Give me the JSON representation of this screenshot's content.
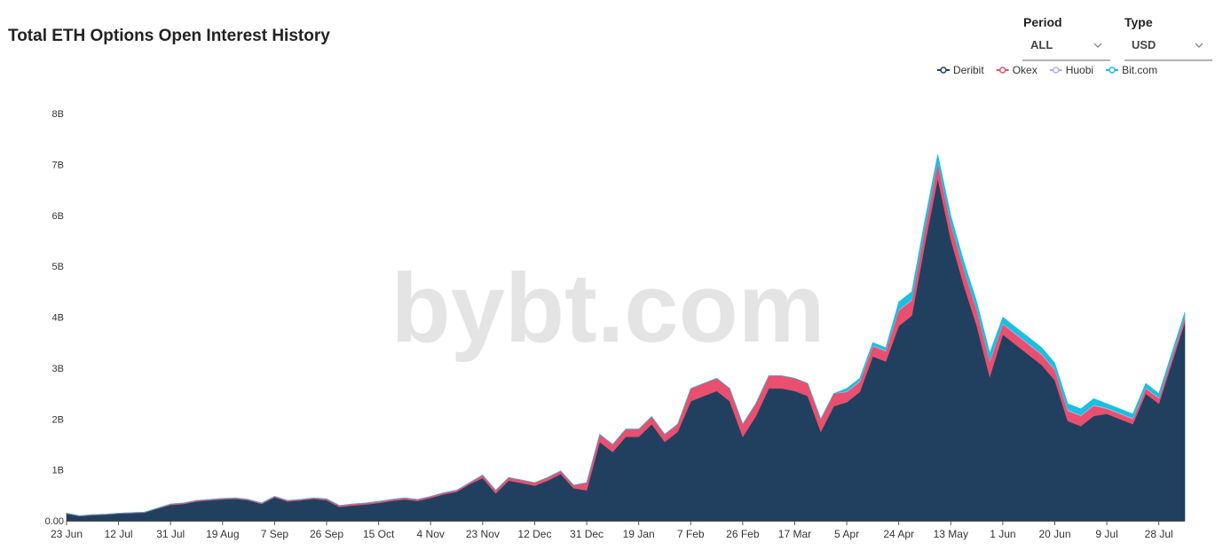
{
  "ui": {
    "period_label": "Period",
    "period_value": "ALL",
    "type_label": "Type",
    "type_value": "USD",
    "watermark": "bybt.com"
  },
  "chart_data": {
    "type": "stacked-area",
    "title": "Total ETH Options Open Interest History",
    "categories": [
      "23 Jun",
      null,
      null,
      null,
      "12 Jul",
      null,
      null,
      null,
      "31 Jul",
      null,
      null,
      null,
      "19 Aug",
      null,
      null,
      null,
      "7 Sep",
      null,
      null,
      null,
      "26 Sep",
      null,
      null,
      null,
      "15 Oct",
      null,
      null,
      null,
      "4 Nov",
      null,
      null,
      null,
      "23 Nov",
      null,
      null,
      null,
      "12 Dec",
      null,
      null,
      null,
      "31 Dec",
      null,
      null,
      null,
      "19 Jan",
      null,
      null,
      null,
      "7 Feb",
      null,
      null,
      null,
      "26 Feb",
      null,
      null,
      null,
      "17 Mar",
      null,
      null,
      null,
      "5 Apr",
      null,
      null,
      null,
      "24 Apr",
      null,
      null,
      null,
      "13 May",
      null,
      null,
      null,
      "1 Jun",
      null,
      null,
      null,
      "20 Jun",
      null,
      null,
      null,
      "9 Jul",
      null,
      null,
      null,
      "28 Jul",
      null,
      null
    ],
    "series": [
      {
        "name": "Deribit",
        "color": "#21405f",
        "values": [
          0.14,
          0.09,
          0.11,
          0.12,
          0.14,
          0.15,
          0.16,
          0.24,
          0.31,
          0.33,
          0.38,
          0.4,
          0.42,
          0.43,
          0.4,
          0.33,
          0.46,
          0.38,
          0.4,
          0.43,
          0.4,
          0.27,
          0.3,
          0.32,
          0.35,
          0.39,
          0.42,
          0.39,
          0.45,
          0.52,
          0.57,
          0.72,
          0.84,
          0.54,
          0.79,
          0.74,
          0.69,
          0.79,
          0.92,
          0.64,
          0.6,
          1.55,
          1.35,
          1.65,
          1.65,
          1.9,
          1.55,
          1.75,
          2.35,
          2.45,
          2.55,
          2.35,
          1.65,
          2.05,
          2.6,
          2.6,
          2.55,
          2.45,
          1.75,
          2.25,
          2.33,
          2.53,
          3.23,
          3.13,
          3.83,
          4.03,
          5.43,
          6.73,
          5.53,
          4.63,
          3.83,
          2.83,
          3.66,
          3.46,
          3.26,
          3.06,
          2.76,
          1.96,
          1.86,
          2.06,
          2.1,
          2.0,
          1.9,
          2.5,
          2.3,
          3.1,
          3.9
        ]
      },
      {
        "name": "Okex",
        "color": "#e94f6e",
        "values": [
          0.01,
          0.01,
          0.01,
          0.01,
          0.01,
          0.01,
          0.01,
          0.01,
          0.02,
          0.02,
          0.02,
          0.02,
          0.02,
          0.02,
          0.02,
          0.02,
          0.02,
          0.02,
          0.02,
          0.02,
          0.03,
          0.03,
          0.03,
          0.03,
          0.03,
          0.03,
          0.03,
          0.03,
          0.03,
          0.03,
          0.03,
          0.03,
          0.06,
          0.06,
          0.06,
          0.06,
          0.06,
          0.06,
          0.06,
          0.06,
          0.15,
          0.15,
          0.15,
          0.15,
          0.15,
          0.15,
          0.15,
          0.15,
          0.25,
          0.25,
          0.25,
          0.25,
          0.25,
          0.25,
          0.25,
          0.25,
          0.25,
          0.25,
          0.25,
          0.25,
          0.2,
          0.2,
          0.2,
          0.2,
          0.3,
          0.3,
          0.3,
          0.3,
          0.3,
          0.3,
          0.3,
          0.3,
          0.2,
          0.2,
          0.2,
          0.2,
          0.2,
          0.2,
          0.2,
          0.2,
          0.1,
          0.1,
          0.1,
          0.1,
          0.1,
          0.1,
          0.1
        ]
      },
      {
        "name": "Huobi",
        "color": "#b8aee0",
        "values": [
          0,
          0,
          0,
          0,
          0,
          0,
          0,
          0,
          0,
          0,
          0,
          0,
          0,
          0,
          0,
          0,
          0,
          0,
          0,
          0,
          0,
          0,
          0,
          0,
          0,
          0,
          0,
          0,
          0,
          0,
          0,
          0,
          0,
          0,
          0,
          0,
          0,
          0,
          0,
          0,
          0,
          0,
          0,
          0,
          0,
          0,
          0,
          0,
          0,
          0,
          0,
          0,
          0,
          0,
          0,
          0,
          0,
          0,
          0,
          0,
          0.02,
          0.02,
          0.02,
          0.02,
          0.02,
          0.02,
          0.02,
          0.02,
          0.02,
          0.02,
          0.02,
          0.02,
          0.02,
          0.02,
          0.02,
          0.02,
          0.02,
          0.02,
          0.02,
          0.02,
          0.02,
          0.02,
          0.02,
          0.02,
          0.02,
          0.02,
          0.02
        ]
      },
      {
        "name": "Bit.com",
        "color": "#1bbfe0",
        "values": [
          0,
          0,
          0,
          0,
          0,
          0,
          0,
          0,
          0,
          0,
          0,
          0,
          0,
          0,
          0,
          0,
          0,
          0,
          0,
          0,
          0,
          0,
          0,
          0,
          0,
          0,
          0,
          0,
          0,
          0,
          0,
          0,
          0,
          0,
          0,
          0,
          0,
          0,
          0,
          0,
          0,
          0,
          0,
          0,
          0,
          0,
          0,
          0,
          0,
          0,
          0,
          0,
          0,
          0,
          0,
          0,
          0,
          0,
          0,
          0,
          0.05,
          0.05,
          0.05,
          0.05,
          0.15,
          0.15,
          0.15,
          0.15,
          0.15,
          0.15,
          0.15,
          0.15,
          0.12,
          0.12,
          0.12,
          0.12,
          0.12,
          0.12,
          0.12,
          0.12,
          0.08,
          0.08,
          0.08,
          0.08,
          0.08,
          0.08,
          0.08
        ]
      }
    ],
    "ylim": [
      0,
      8
    ],
    "yticks": [
      {
        "value": 0,
        "label": "0.00"
      },
      {
        "value": 1,
        "label": "1B"
      },
      {
        "value": 2,
        "label": "2B"
      },
      {
        "value": 3,
        "label": "3B"
      },
      {
        "value": 4,
        "label": "4B"
      },
      {
        "value": 5,
        "label": "5B"
      },
      {
        "value": 6,
        "label": "6B"
      },
      {
        "value": 7,
        "label": "7B"
      },
      {
        "value": 8,
        "label": "8B"
      }
    ],
    "grid": false,
    "legend": "top-right"
  }
}
